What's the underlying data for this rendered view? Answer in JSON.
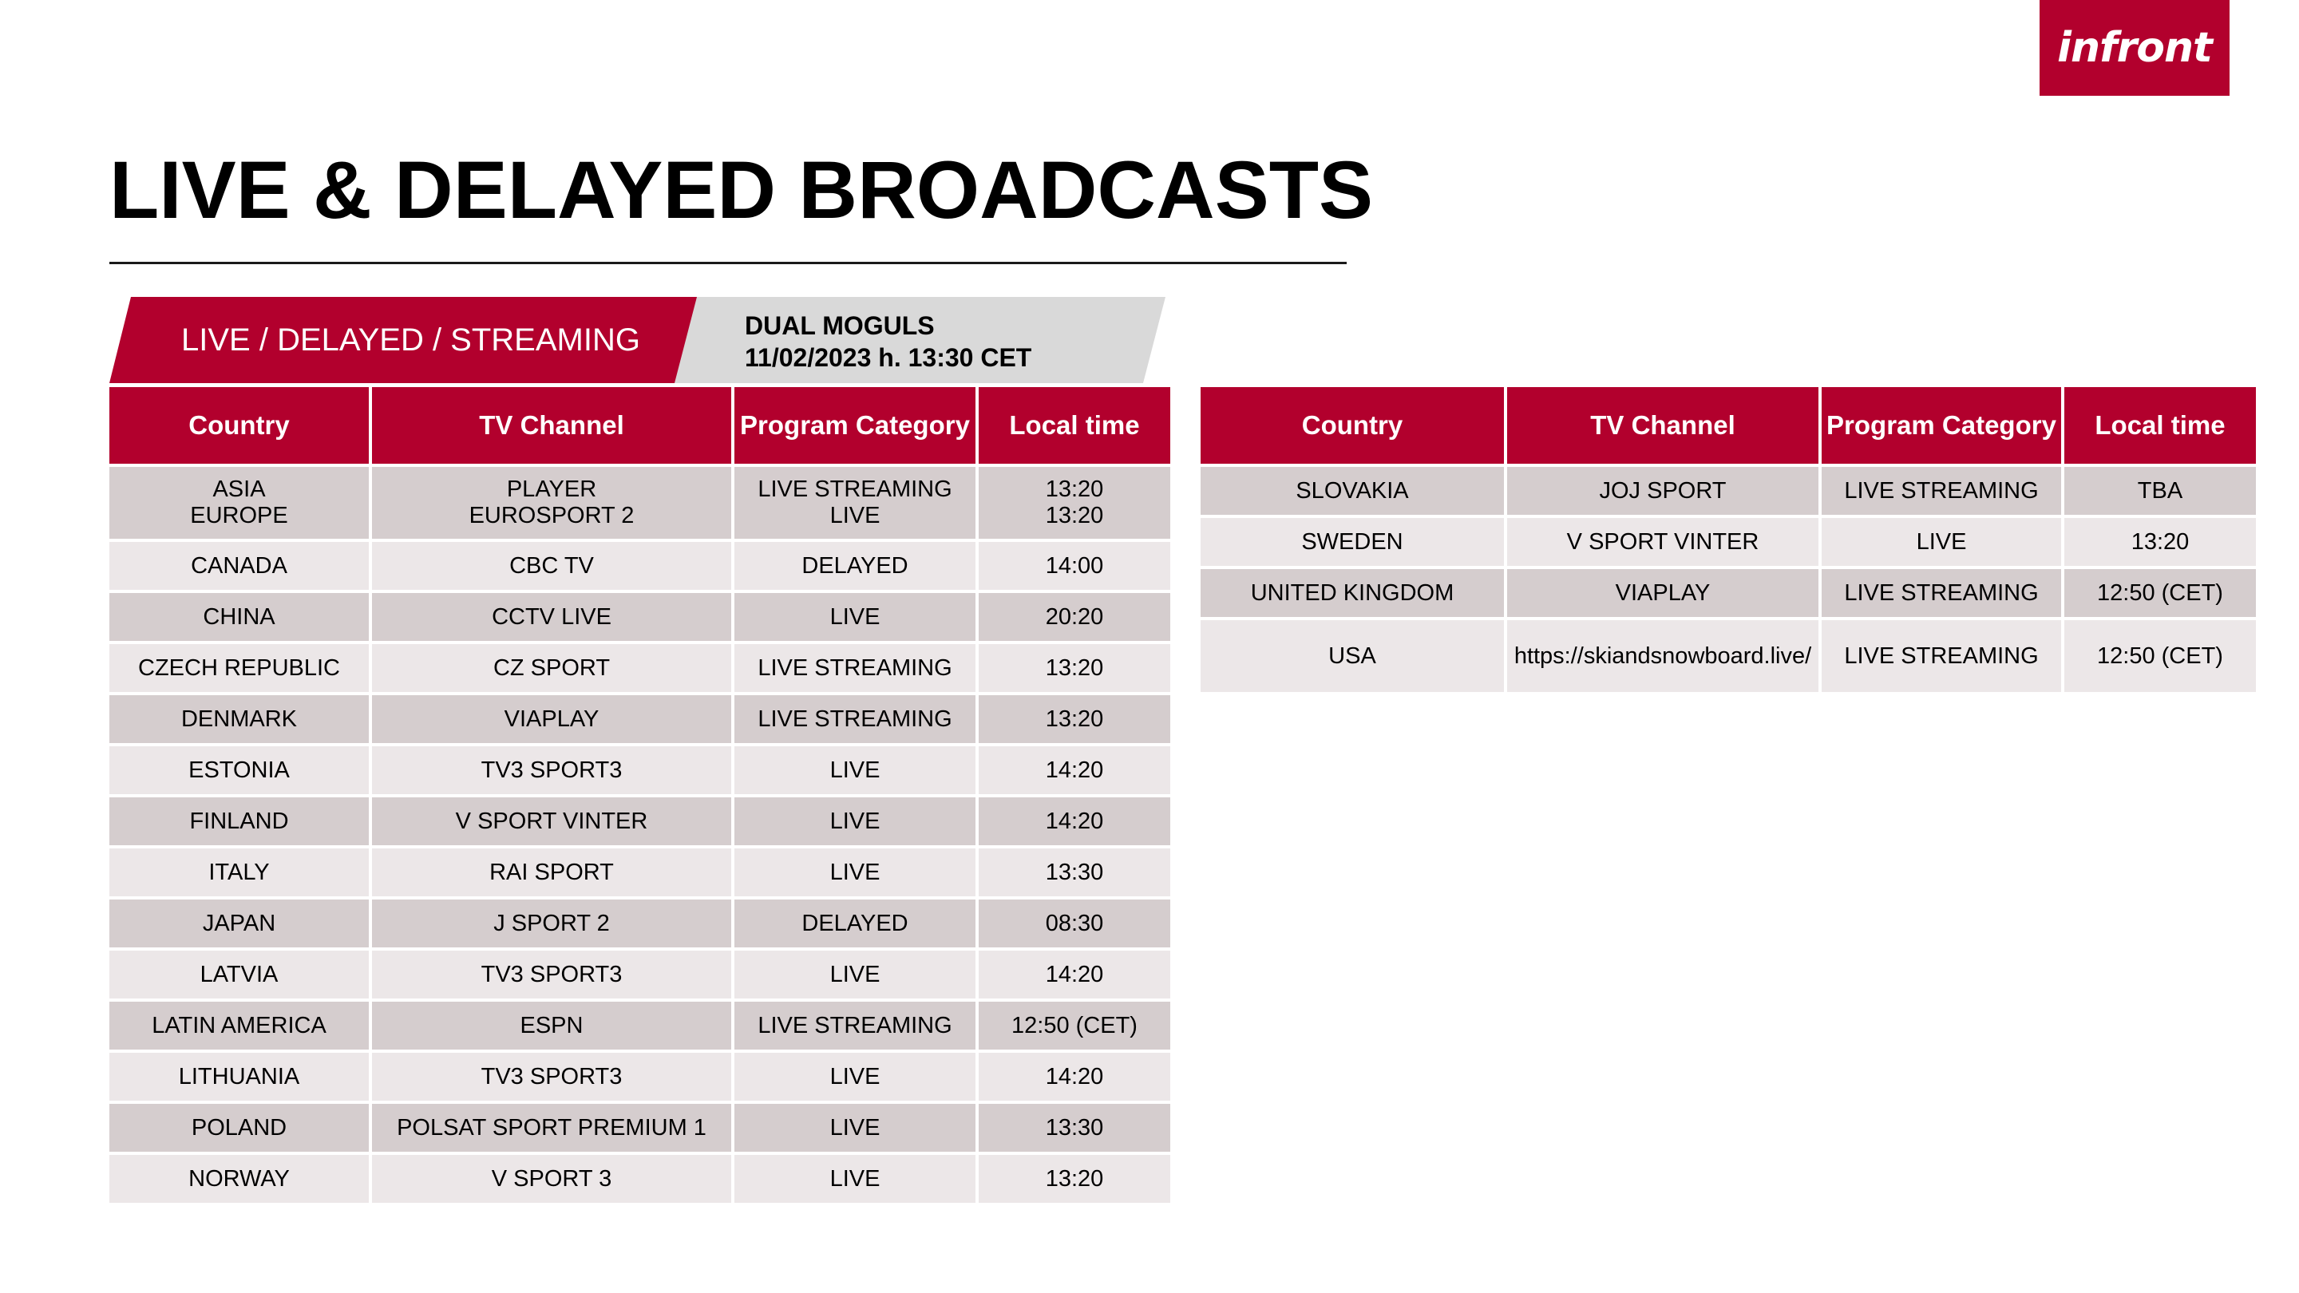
{
  "logo": {
    "text": "infront"
  },
  "page": {
    "title": "LIVE & DELAYED BROADCASTS"
  },
  "banner": {
    "left_label": "LIVE / DELAYED / STREAMING",
    "event_name": "DUAL MOGULS",
    "event_datetime": "11/02/2023 h. 13:30 CET"
  },
  "columns": [
    "Country",
    "TV Channel",
    "Program Category",
    "Local time"
  ],
  "left_table": [
    {
      "country": [
        "ASIA",
        "EUROPE"
      ],
      "channel": [
        "PLAYER",
        "EUROSPORT 2"
      ],
      "category": [
        "LIVE STREAMING",
        "LIVE"
      ],
      "time": [
        "13:20",
        "13:20"
      ]
    },
    {
      "country": [
        "CANADA"
      ],
      "channel": [
        "CBC TV"
      ],
      "category": [
        "DELAYED"
      ],
      "time": [
        "14:00"
      ]
    },
    {
      "country": [
        "CHINA"
      ],
      "channel": [
        "CCTV LIVE"
      ],
      "category": [
        "LIVE"
      ],
      "time": [
        "20:20"
      ]
    },
    {
      "country": [
        "CZECH REPUBLIC"
      ],
      "channel": [
        "CZ SPORT"
      ],
      "category": [
        "LIVE STREAMING"
      ],
      "time": [
        "13:20"
      ]
    },
    {
      "country": [
        "DENMARK"
      ],
      "channel": [
        "VIAPLAY"
      ],
      "category": [
        "LIVE STREAMING"
      ],
      "time": [
        "13:20"
      ]
    },
    {
      "country": [
        "ESTONIA"
      ],
      "channel": [
        "TV3 SPORT3"
      ],
      "category": [
        "LIVE"
      ],
      "time": [
        "14:20"
      ]
    },
    {
      "country": [
        "FINLAND"
      ],
      "channel": [
        "V SPORT VINTER"
      ],
      "category": [
        "LIVE"
      ],
      "time": [
        "14:20"
      ]
    },
    {
      "country": [
        "ITALY"
      ],
      "channel": [
        "RAI SPORT"
      ],
      "category": [
        "LIVE"
      ],
      "time": [
        "13:30"
      ]
    },
    {
      "country": [
        "JAPAN"
      ],
      "channel": [
        "J SPORT 2"
      ],
      "category": [
        "DELAYED"
      ],
      "time": [
        "08:30"
      ]
    },
    {
      "country": [
        "LATVIA"
      ],
      "channel": [
        "TV3 SPORT3"
      ],
      "category": [
        "LIVE"
      ],
      "time": [
        "14:20"
      ]
    },
    {
      "country": [
        "LATIN AMERICA"
      ],
      "channel": [
        "ESPN"
      ],
      "category": [
        "LIVE STREAMING"
      ],
      "time": [
        "12:50 (CET)"
      ]
    },
    {
      "country": [
        "LITHUANIA"
      ],
      "channel": [
        "TV3 SPORT3"
      ],
      "category": [
        "LIVE"
      ],
      "time": [
        "14:20"
      ]
    },
    {
      "country": [
        "POLAND"
      ],
      "channel": [
        "POLSAT SPORT PREMIUM 1"
      ],
      "category": [
        "LIVE"
      ],
      "time": [
        "13:30"
      ]
    },
    {
      "country": [
        "NORWAY"
      ],
      "channel": [
        "V SPORT 3"
      ],
      "category": [
        "LIVE"
      ],
      "time": [
        "13:20"
      ]
    }
  ],
  "right_table": [
    {
      "country": [
        "SLOVAKIA"
      ],
      "channel": [
        "JOJ SPORT"
      ],
      "category": [
        "LIVE STREAMING"
      ],
      "time": [
        "TBA"
      ]
    },
    {
      "country": [
        "SWEDEN"
      ],
      "channel": [
        "V SPORT VINTER"
      ],
      "category": [
        "LIVE"
      ],
      "time": [
        "13:20"
      ]
    },
    {
      "country": [
        "UNITED KINGDOM"
      ],
      "channel": [
        "VIAPLAY"
      ],
      "category": [
        "LIVE STREAMING"
      ],
      "time": [
        "12:50 (CET)"
      ]
    },
    {
      "country": [
        "USA"
      ],
      "channel": [
        "https://skiandsnowboard.live/"
      ],
      "category": [
        "LIVE STREAMING"
      ],
      "time": [
        "12:50 (CET)"
      ]
    }
  ]
}
